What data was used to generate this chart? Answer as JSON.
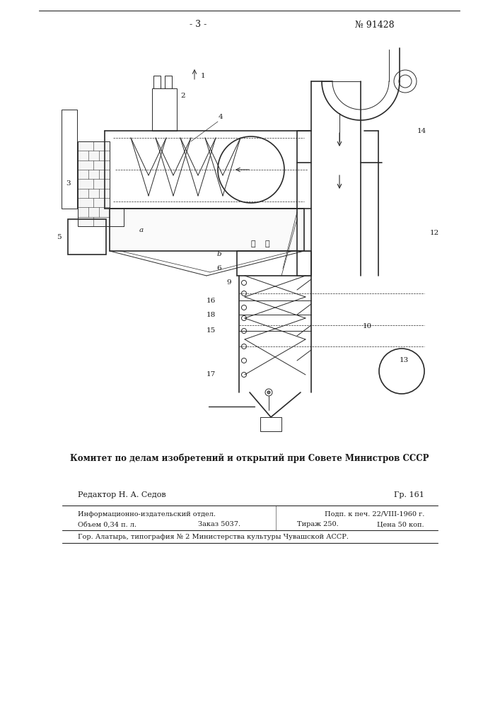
{
  "page_number": "- 3 -",
  "patent_number": "№ 91428",
  "committee_text": "Комитет по делам изобретений и открытий при Совете Министров СССР",
  "editor_text": "Редактор Н. А. Седов",
  "gr_text": "Гр. 161",
  "info_line1": "Информационно-издательский отдел.",
  "info_line1_right": "Подп. к печ. 22/VIII-1960 г.",
  "info_line2_left": "Объем 0,34 п. л.",
  "info_line2_mid": "Заказ 5037.",
  "info_line2_right_mid": "Тираж 250.",
  "info_line2_right": "Цена 50 коп.",
  "footer_text": "Гор. Алатырь, типография № 2 Министерства культуры Чувашской АССР.",
  "bg_color": "#ffffff",
  "line_color": "#2a2a2a",
  "text_color": "#1a1a1a"
}
